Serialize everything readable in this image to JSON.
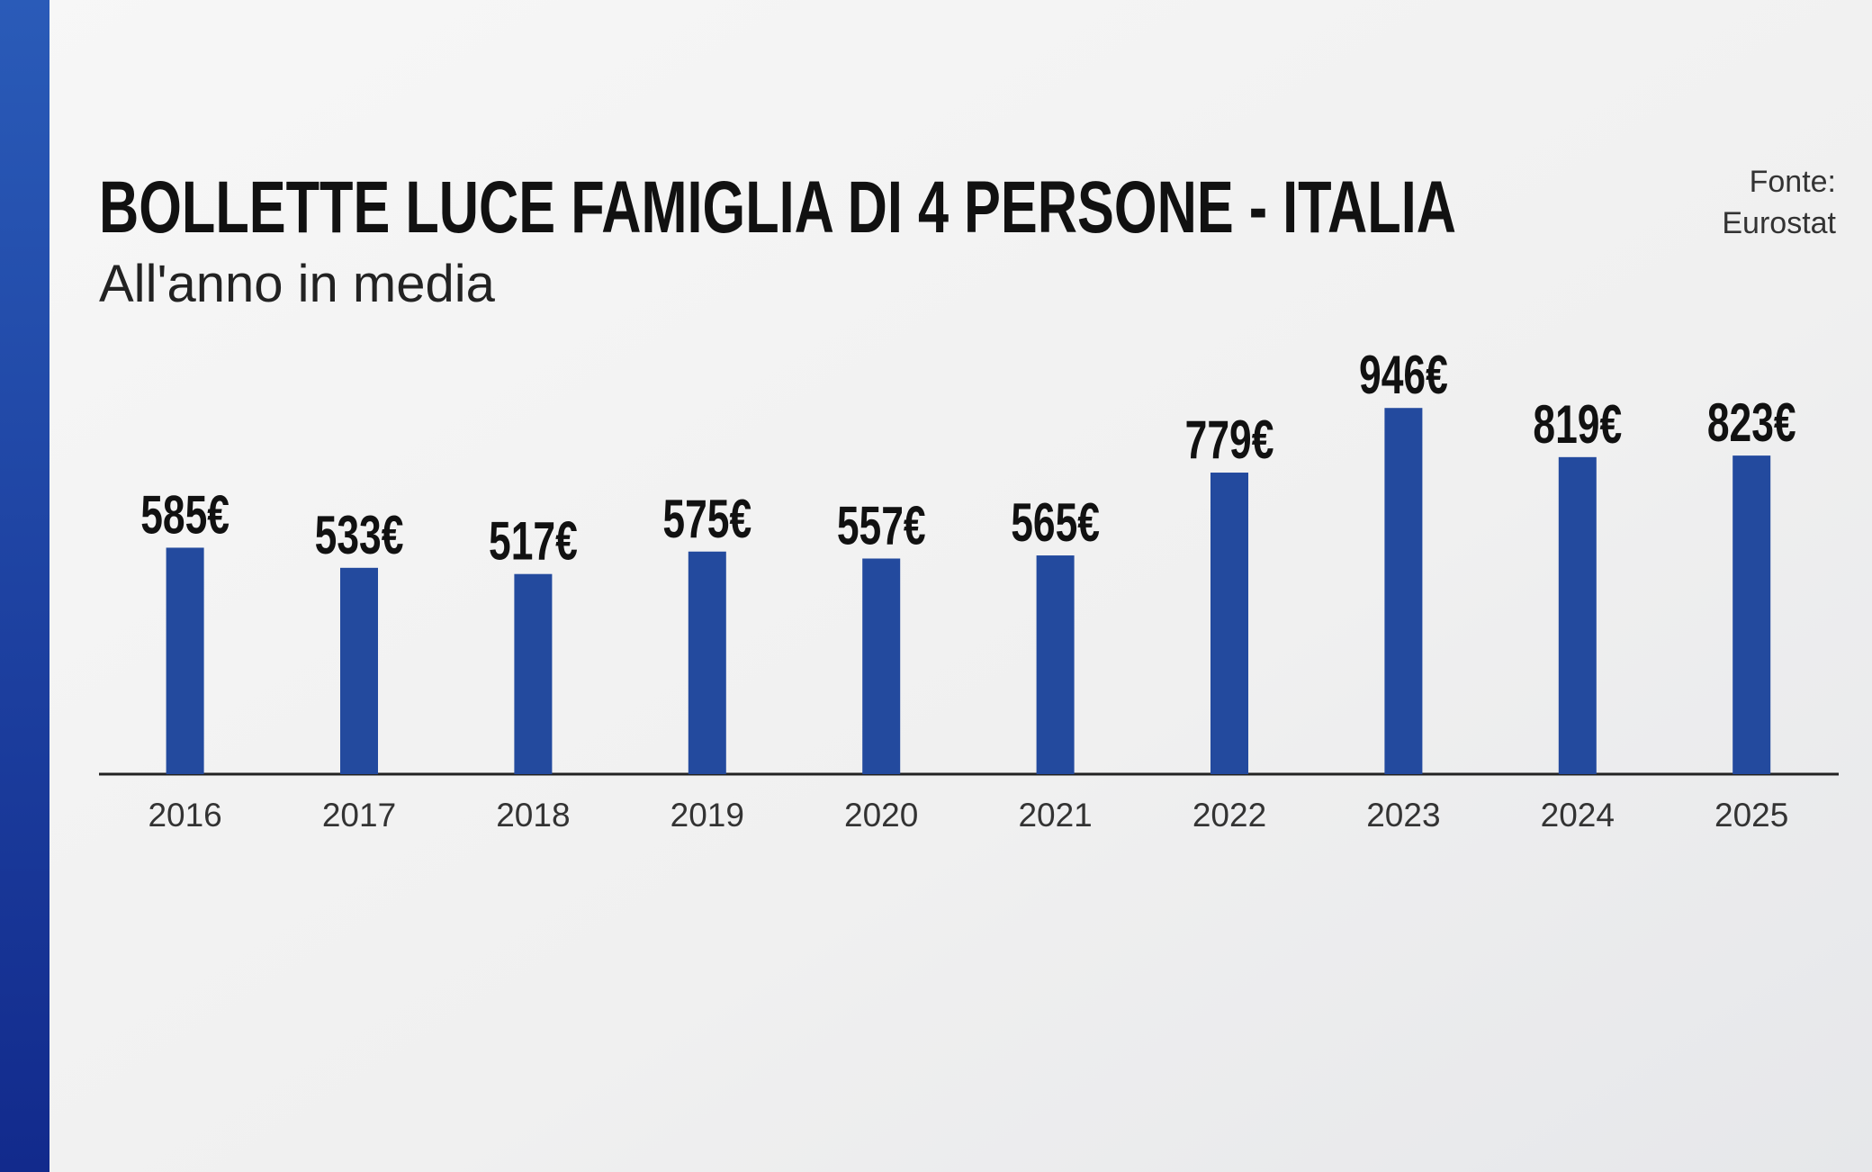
{
  "chart_data": {
    "type": "bar",
    "title": "BOLLETTE LUCE FAMIGLIA DI 4 PERSONE - ITALIA",
    "subtitle": "All'anno in media",
    "source": [
      "Fonte:",
      "Eurostat"
    ],
    "categories": [
      "2016",
      "2017",
      "2018",
      "2019",
      "2020",
      "2021",
      "2022",
      "2023",
      "2024",
      "2025"
    ],
    "values": [
      585,
      533,
      517,
      575,
      557,
      565,
      779,
      946,
      819,
      823
    ],
    "value_labels": [
      "585€",
      "533€",
      "517€",
      "575€",
      "557€",
      "565€",
      "779€",
      "946€",
      "819€",
      "823€"
    ],
    "color": "#234a9e"
  }
}
